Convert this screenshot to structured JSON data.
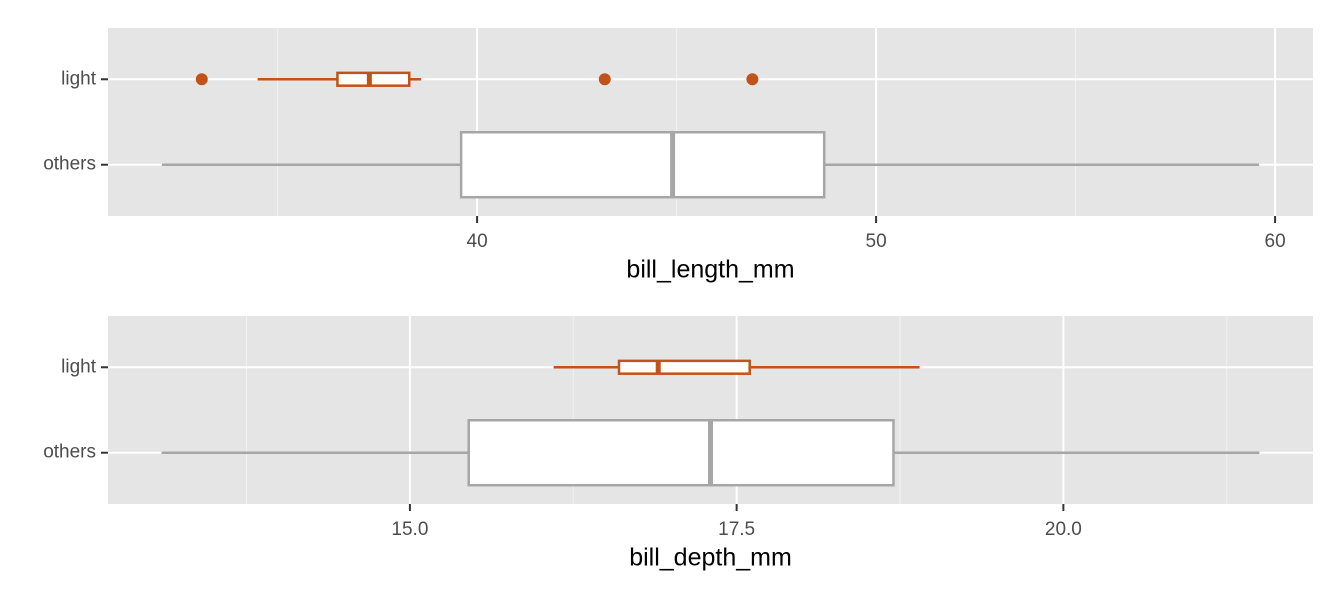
{
  "chart_data": [
    {
      "type": "boxplot",
      "x_label": "bill_length_mm",
      "categories": [
        "others",
        "light"
      ],
      "colors": [
        "#a6a6a6",
        "#c1531a"
      ],
      "whislo": [
        32.1,
        34.5
      ],
      "q1": [
        39.6,
        36.5
      ],
      "median": [
        44.9,
        37.3
      ],
      "q3": [
        48.7,
        38.3
      ],
      "whishi": [
        59.6,
        38.6
      ],
      "outliers": [
        [],
        [
          33.1,
          43.2,
          46.9
        ]
      ],
      "xlim": [
        30.75,
        60.95
      ],
      "xticks": [
        40,
        50,
        60
      ],
      "grid": true
    },
    {
      "type": "boxplot",
      "x_label": "bill_depth_mm",
      "categories": [
        "others",
        "light"
      ],
      "colors": [
        "#a6a6a6",
        "#c1531a"
      ],
      "whislo": [
        13.1,
        16.1
      ],
      "q1": [
        15.45,
        16.6
      ],
      "median": [
        17.3,
        16.9
      ],
      "q3": [
        18.7,
        17.6
      ],
      "whishi": [
        21.5,
        18.9
      ],
      "outliers": [
        [],
        []
      ],
      "xlim": [
        12.69,
        21.91
      ],
      "xticks": [
        {
          "value": 15,
          "label": "15.0"
        },
        {
          "value": 17.5,
          "label": "17.5"
        },
        {
          "value": 20,
          "label": "20.0"
        }
      ],
      "grid": true
    }
  ]
}
